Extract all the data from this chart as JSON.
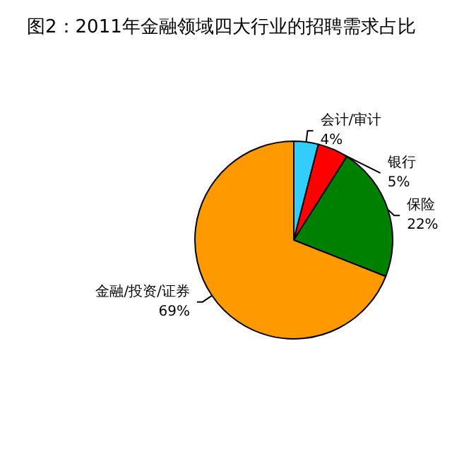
{
  "chart_data": {
    "type": "pie",
    "title": "图2：2011年金融领域四大行业的招聘需求占比",
    "categories": [
      "会计/审计",
      "银行",
      "保险",
      "金融/投资/证券"
    ],
    "values": [
      4,
      5,
      22,
      69
    ],
    "value_labels": [
      "4%",
      "5%",
      "22%",
      "69%"
    ],
    "colors": [
      "#33ccff",
      "#ff0000",
      "#008000",
      "#ff9900"
    ],
    "legend": false
  }
}
